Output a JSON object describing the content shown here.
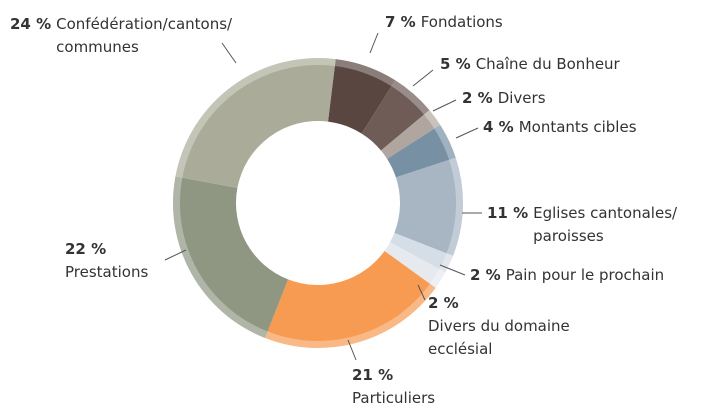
{
  "chart_data": {
    "type": "donut",
    "categories": [
      "Fondations",
      "Chaîne du Bonheur",
      "Divers",
      "Montants cibles",
      "Eglises cantonales/\nparoisses",
      "Pain pour le prochain",
      "Divers du domaine\necclésial",
      "Particuliers",
      "Prestations",
      "Confédération/cantons/\ncommunes"
    ],
    "values": [
      7,
      5,
      2,
      4,
      11,
      2,
      2,
      21,
      22,
      24
    ],
    "value_labels": [
      "7 %",
      "5 %",
      "2 %",
      "4 %",
      "11 %",
      "2 %",
      "2 %",
      "21 %",
      "22 %",
      "24 %"
    ],
    "colors": [
      "#5a4641",
      "#6f5c57",
      "#b1a69f",
      "#7890a4",
      "#a8b6c4",
      "#d5dde6",
      "#e6eaef",
      "#f79b53",
      "#8f9782",
      "#aaac99"
    ]
  }
}
